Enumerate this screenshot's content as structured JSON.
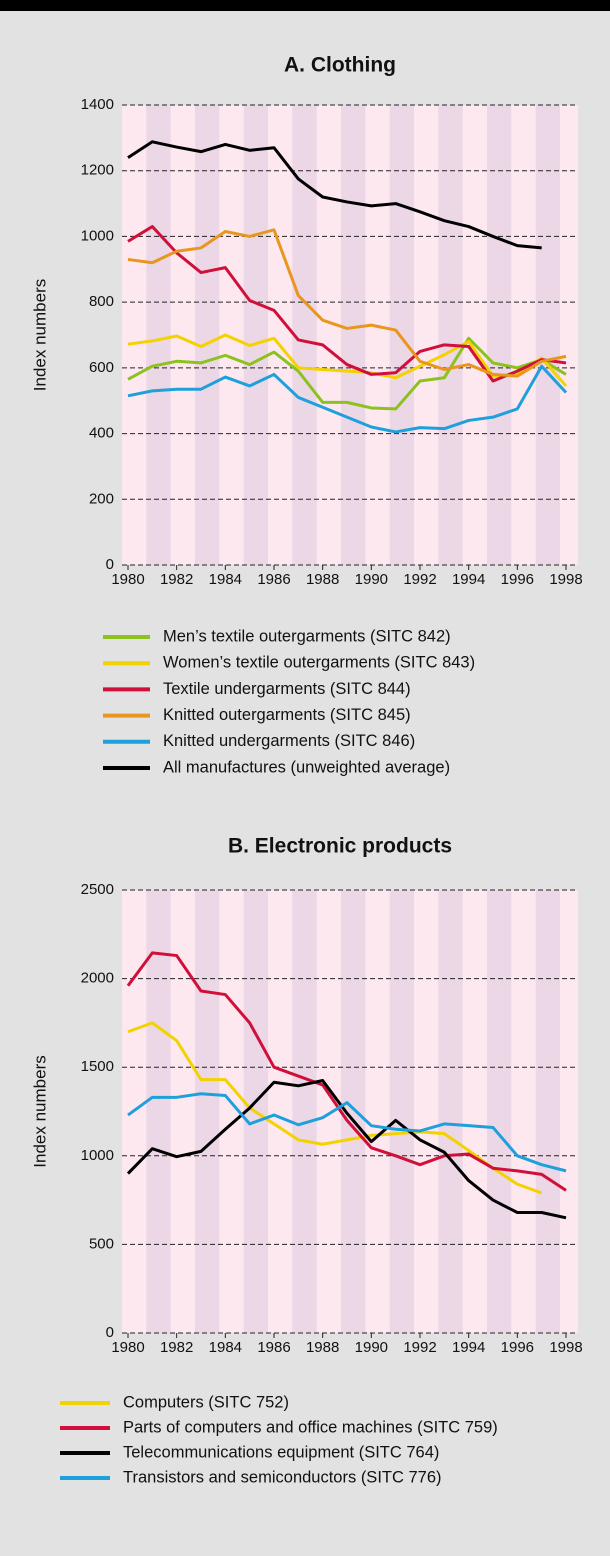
{
  "chart_data": [
    {
      "type": "line",
      "title": "A. Clothing",
      "y_label": "Index numbers",
      "x": [
        1980,
        1981,
        1982,
        1983,
        1984,
        1985,
        1986,
        1987,
        1988,
        1989,
        1990,
        1991,
        1992,
        1993,
        1994,
        1995,
        1996,
        1997,
        1998
      ],
      "xlim": [
        1980,
        1998
      ],
      "xticks": [
        1980,
        1982,
        1984,
        1986,
        1988,
        1990,
        1992,
        1994,
        1996,
        1998
      ],
      "ylim": [
        0,
        1400
      ],
      "yticks": [
        0,
        200,
        400,
        600,
        800,
        1000,
        1200,
        1400
      ],
      "grid": true,
      "series": [
        {
          "name": "Men’s textile outergarments (SITC 842)",
          "color": "#8cc21e",
          "values": [
            565,
            605,
            620,
            615,
            638,
            610,
            648,
            590,
            495,
            495,
            478,
            475,
            560,
            570,
            690,
            615,
            600,
            625,
            580
          ]
        },
        {
          "name": "Women’s textile outergarments (SITC 843)",
          "color": "#f2d200",
          "values": [
            672,
            682,
            697,
            665,
            700,
            668,
            690,
            600,
            595,
            590,
            585,
            570,
            605,
            640,
            680,
            575,
            580,
            630,
            545
          ]
        },
        {
          "name": "Textile undergarments (SITC 844)",
          "color": "#d0103a",
          "values": [
            985,
            1030,
            950,
            890,
            905,
            805,
            775,
            685,
            670,
            610,
            580,
            585,
            650,
            670,
            665,
            560,
            590,
            625,
            615
          ]
        },
        {
          "name": "Knitted outergarments (SITC 845)",
          "color": "#e8961e",
          "values": [
            930,
            920,
            955,
            965,
            1015,
            1000,
            1020,
            820,
            745,
            720,
            730,
            715,
            620,
            595,
            610,
            580,
            575,
            620,
            635
          ]
        },
        {
          "name": "Knitted undergarments (SITC 846)",
          "color": "#1ea0dc",
          "values": [
            515,
            530,
            535,
            535,
            572,
            545,
            580,
            510,
            480,
            450,
            420,
            405,
            418,
            415,
            440,
            450,
            475,
            605,
            525
          ]
        },
        {
          "name": "All manufactures (unweighted average)",
          "color": "#000000",
          "values": [
            1240,
            1288,
            1272,
            1258,
            1280,
            1262,
            1270,
            1175,
            1120,
            1105,
            1093,
            1100,
            1075,
            1048,
            1030,
            1000,
            972,
            965,
            null
          ]
        }
      ]
    },
    {
      "type": "line",
      "title": "B. Electronic products",
      "y_label": "Index numbers",
      "x": [
        1980,
        1981,
        1982,
        1983,
        1984,
        1985,
        1986,
        1987,
        1988,
        1989,
        1990,
        1991,
        1992,
        1993,
        1994,
        1995,
        1996,
        1997,
        1998
      ],
      "xlim": [
        1980,
        1998
      ],
      "xticks": [
        1980,
        1982,
        1984,
        1986,
        1988,
        1990,
        1992,
        1994,
        1996,
        1998
      ],
      "ylim": [
        0,
        2500
      ],
      "yticks": [
        0,
        500,
        1000,
        1500,
        2000,
        2500
      ],
      "grid": true,
      "series": [
        {
          "name": "Computers (SITC 752)",
          "color": "#f2d200",
          "values": [
            1700,
            1750,
            1650,
            1430,
            1430,
            1270,
            1180,
            1090,
            1065,
            1090,
            1115,
            1125,
            1135,
            1125,
            1030,
            930,
            840,
            790,
            null
          ]
        },
        {
          "name": "Parts of computers and office machines (SITC 759)",
          "color": "#d0103a",
          "values": [
            1960,
            2145,
            2130,
            1930,
            1910,
            1750,
            1500,
            1450,
            1400,
            1200,
            1045,
            1000,
            950,
            1000,
            1010,
            930,
            915,
            895,
            805
          ]
        },
        {
          "name": "Telecommunications equipment (SITC 764)",
          "color": "#000000",
          "values": [
            900,
            1040,
            995,
            1025,
            1150,
            1270,
            1415,
            1395,
            1425,
            1240,
            1080,
            1200,
            1090,
            1020,
            860,
            750,
            680,
            680,
            650
          ]
        },
        {
          "name": "Transistors and semiconductors (SITC 776)",
          "color": "#1ea0dc",
          "values": [
            1230,
            1330,
            1330,
            1350,
            1340,
            1180,
            1230,
            1175,
            1215,
            1300,
            1170,
            1150,
            1140,
            1180,
            1170,
            1160,
            1000,
            950,
            915
          ]
        }
      ]
    }
  ]
}
